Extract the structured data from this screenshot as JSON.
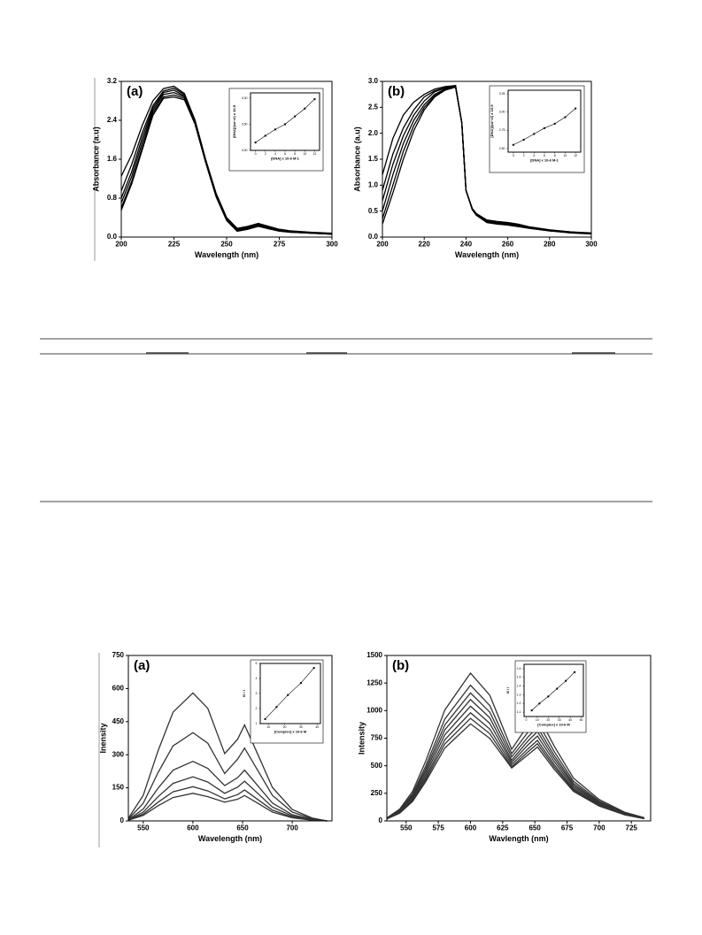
{
  "chart_data": [
    {
      "type": "line",
      "panel_label": "(a)",
      "xlabel": "Wavelength (nm)",
      "ylabel": "Absorbance (a.u)",
      "xlim": [
        200,
        300
      ],
      "xticks": [
        200,
        225,
        250,
        275,
        300
      ],
      "ylim": [
        0,
        3.2
      ],
      "yticks": [
        {
          "value": 0,
          "label": "0.0"
        },
        0.8,
        1.6,
        2.4,
        3.2
      ],
      "x": [
        200,
        205,
        210,
        215,
        220,
        225,
        230,
        235,
        240,
        245,
        250,
        255,
        260,
        265,
        270,
        275,
        280,
        290,
        300
      ],
      "series": [
        {
          "color": "#000000",
          "values": [
            1.25,
            1.7,
            2.3,
            2.8,
            3.05,
            3.1,
            2.95,
            2.4,
            1.6,
            0.9,
            0.4,
            0.18,
            0.22,
            0.28,
            0.22,
            0.16,
            0.13,
            0.1,
            0.08
          ]
        },
        {
          "color": "#000000",
          "values": [
            0.95,
            1.5,
            2.15,
            2.7,
            3.0,
            3.06,
            2.93,
            2.4,
            1.6,
            0.88,
            0.38,
            0.16,
            0.2,
            0.26,
            0.2,
            0.15,
            0.12,
            0.09,
            0.07
          ]
        },
        {
          "color": "#000000",
          "values": [
            0.8,
            1.35,
            2.05,
            2.65,
            2.97,
            3.02,
            2.9,
            2.38,
            1.58,
            0.86,
            0.37,
            0.15,
            0.19,
            0.25,
            0.19,
            0.14,
            0.11,
            0.09,
            0.07
          ]
        },
        {
          "color": "#000000",
          "values": [
            0.7,
            1.25,
            1.95,
            2.6,
            2.93,
            2.97,
            2.88,
            2.36,
            1.56,
            0.85,
            0.36,
            0.14,
            0.18,
            0.24,
            0.18,
            0.13,
            0.11,
            0.08,
            0.06
          ]
        },
        {
          "color": "#000000",
          "values": [
            0.6,
            1.15,
            1.85,
            2.55,
            2.88,
            2.92,
            2.85,
            2.34,
            1.55,
            0.84,
            0.35,
            0.13,
            0.17,
            0.23,
            0.17,
            0.13,
            0.1,
            0.08,
            0.06
          ]
        },
        {
          "color": "#000000",
          "values": [
            0.55,
            1.1,
            1.8,
            2.5,
            2.85,
            2.88,
            2.82,
            2.32,
            1.54,
            0.83,
            0.34,
            0.12,
            0.16,
            0.22,
            0.17,
            0.12,
            0.1,
            0.08,
            0.06
          ]
        }
      ],
      "inset": {
        "type": "line",
        "markers": true,
        "xlabel": "[DNA] x 10-6 M-1",
        "ylabel": "[DNA]/(εa−εf) x 10-9",
        "xlim": [
          -1,
          13
        ],
        "xticks": [
          0,
          2,
          4,
          6,
          8,
          10,
          12
        ],
        "ylim": [
          3.0,
          4.1
        ],
        "yticks": [
          {
            "value": 3,
            "label": "3.00"
          },
          {
            "value": 3.5,
            "label": "3.50"
          },
          {
            "value": 4,
            "label": "4.00"
          }
        ],
        "x": [
          0,
          2,
          4,
          6,
          8,
          10,
          12
        ],
        "series": [
          {
            "color": "#000000",
            "values": [
              3.15,
              3.28,
              3.4,
              3.5,
              3.65,
              3.8,
              3.98
            ]
          }
        ]
      }
    },
    {
      "type": "line",
      "panel_label": "(b)",
      "xlabel": "Wavelength (nm)",
      "ylabel": "Absorbance (a.u)",
      "xlim": [
        200,
        300
      ],
      "xticks": [
        200,
        220,
        240,
        260,
        280,
        300
      ],
      "ylim": [
        0,
        3
      ],
      "yticks": [
        {
          "value": 0,
          "label": "0.0"
        },
        0.5,
        {
          "value": 1,
          "label": "1.0"
        },
        1.5,
        {
          "value": 2,
          "label": "2.0"
        },
        2.5,
        {
          "value": 3,
          "label": "3.0"
        }
      ],
      "x": [
        200,
        205,
        210,
        215,
        220,
        225,
        230,
        235,
        238,
        240,
        243,
        245,
        250,
        255,
        260,
        265,
        270,
        280,
        290,
        300
      ],
      "series": [
        {
          "color": "#000000",
          "values": [
            1.2,
            1.9,
            2.35,
            2.6,
            2.75,
            2.85,
            2.9,
            2.92,
            2.2,
            0.9,
            0.55,
            0.45,
            0.33,
            0.3,
            0.28,
            0.25,
            0.2,
            0.14,
            0.1,
            0.08
          ]
        },
        {
          "color": "#000000",
          "values": [
            0.9,
            1.6,
            2.1,
            2.45,
            2.7,
            2.82,
            2.88,
            2.92,
            2.2,
            0.9,
            0.55,
            0.45,
            0.32,
            0.29,
            0.27,
            0.24,
            0.19,
            0.13,
            0.1,
            0.07
          ]
        },
        {
          "color": "#000000",
          "values": [
            0.7,
            1.4,
            1.95,
            2.35,
            2.62,
            2.8,
            2.87,
            2.91,
            2.2,
            0.9,
            0.54,
            0.44,
            0.31,
            0.28,
            0.26,
            0.23,
            0.18,
            0.13,
            0.09,
            0.07
          ]
        },
        {
          "color": "#000000",
          "values": [
            0.5,
            1.2,
            1.8,
            2.25,
            2.55,
            2.75,
            2.85,
            2.9,
            2.2,
            0.9,
            0.54,
            0.43,
            0.3,
            0.27,
            0.25,
            0.22,
            0.18,
            0.12,
            0.09,
            0.07
          ]
        },
        {
          "color": "#000000",
          "values": [
            0.35,
            1.0,
            1.65,
            2.15,
            2.5,
            2.72,
            2.84,
            2.9,
            2.2,
            0.9,
            0.53,
            0.42,
            0.29,
            0.26,
            0.24,
            0.21,
            0.17,
            0.12,
            0.09,
            0.07
          ]
        },
        {
          "color": "#000000",
          "values": [
            0.25,
            0.85,
            1.5,
            2.05,
            2.45,
            2.7,
            2.83,
            2.89,
            2.2,
            0.9,
            0.53,
            0.42,
            0.28,
            0.25,
            0.23,
            0.2,
            0.17,
            0.12,
            0.08,
            0.06
          ]
        }
      ],
      "inset": {
        "type": "line",
        "markers": true,
        "xlabel": "[DNA] x 10-6 M-1",
        "ylabel": "[DNA]/(εa−εf) x 10-9",
        "xlim": [
          -1,
          13
        ],
        "xticks": [
          0,
          2,
          4,
          6,
          8,
          10,
          12
        ],
        "ylim": [
          2.45,
          3.3
        ],
        "yticks": [
          {
            "value": 2.5,
            "label": "2.50"
          },
          2.75,
          {
            "value": 3,
            "label": "3.00"
          },
          3.25
        ],
        "x": [
          0,
          2,
          4,
          6,
          8,
          10,
          12
        ],
        "series": [
          {
            "color": "#000000",
            "values": [
              2.55,
              2.62,
              2.7,
              2.78,
              2.84,
              2.93,
              3.05
            ]
          }
        ]
      }
    },
    {
      "type": "line",
      "panel_label": "(a)",
      "xlabel": "Wavelength (nm)",
      "ylabel": "Inensity",
      "xlim": [
        535,
        740
      ],
      "xticks": [
        550,
        600,
        650,
        700
      ],
      "ylim": [
        0,
        750
      ],
      "yticks": [
        0,
        150,
        300,
        450,
        600,
        750
      ],
      "x": [
        535,
        550,
        565,
        580,
        600,
        615,
        632,
        645,
        652,
        665,
        680,
        700,
        720,
        735
      ],
      "series": [
        {
          "color": "#333333",
          "values": [
            12,
            116,
            319,
            493,
            580,
            510,
            305,
            370,
            435,
            305,
            152,
            52,
            13,
            0
          ]
        },
        {
          "color": "#333333",
          "values": [
            8,
            80,
            220,
            340,
            400,
            352,
            215,
            280,
            330,
            231,
            116,
            40,
            10,
            0
          ]
        },
        {
          "color": "#333333",
          "values": [
            5,
            54,
            149,
            230,
            270,
            238,
            160,
            196,
            230,
            161,
            81,
            28,
            7,
            0
          ]
        },
        {
          "color": "#333333",
          "values": [
            4,
            40,
            110,
            170,
            200,
            176,
            125,
            153,
            180,
            126,
            63,
            22,
            5,
            0
          ]
        },
        {
          "color": "#333333",
          "values": [
            3,
            31,
            85,
            132,
            155,
            136,
            100,
            119,
            140,
            98,
            49,
            17,
            4,
            0
          ]
        },
        {
          "color": "#333333",
          "values": [
            3,
            25,
            69,
            106,
            125,
            110,
            85,
            98,
            115,
            81,
            40,
            14,
            3,
            0
          ]
        }
      ],
      "inset": {
        "type": "line",
        "markers": true,
        "xlabel": "[Complex] x 10-6 M",
        "ylabel": "I0 / I",
        "xlim": [
          5,
          42
        ],
        "xticks": [
          10,
          20,
          30,
          40
        ],
        "ylim": [
          1,
          5
        ],
        "yticks": [
          1,
          2,
          3,
          4,
          5
        ],
        "x": [
          8,
          15,
          22,
          30,
          38
        ],
        "series": [
          {
            "color": "#000000",
            "values": [
              1.3,
              2.1,
              2.9,
              3.7,
              4.7
            ]
          }
        ]
      }
    },
    {
      "type": "line",
      "panel_label": "(b)",
      "xlabel": "Wavlength (nm)",
      "ylabel": "Intensity",
      "xlim": [
        535,
        740
      ],
      "xticks": [
        550,
        575,
        600,
        625,
        650,
        675,
        700,
        725
      ],
      "ylim": [
        0,
        1500
      ],
      "yticks": [
        0,
        250,
        500,
        750,
        1000,
        1250,
        1500
      ],
      "x": [
        535,
        545,
        555,
        565,
        580,
        600,
        615,
        632,
        645,
        652,
        665,
        680,
        700,
        720,
        735
      ],
      "series": [
        {
          "color": "#333333",
          "values": [
            27,
            107,
            268,
            536,
            1005,
            1340,
            1139,
            650,
            873,
            970,
            679,
            388,
            194,
            78,
            29
          ]
        },
        {
          "color": "#333333",
          "values": [
            25,
            98,
            246,
            492,
            923,
            1230,
            1046,
            610,
            810,
            900,
            630,
            360,
            180,
            72,
            27
          ]
        },
        {
          "color": "#333333",
          "values": [
            23,
            93,
            232,
            464,
            870,
            1160,
            986,
            580,
            765,
            850,
            595,
            340,
            170,
            68,
            26
          ]
        },
        {
          "color": "#333333",
          "values": [
            22,
            88,
            220,
            440,
            825,
            1100,
            935,
            550,
            729,
            810,
            567,
            324,
            162,
            65,
            24
          ]
        },
        {
          "color": "#333333",
          "values": [
            21,
            83,
            208,
            416,
            780,
            1040,
            884,
            530,
            693,
            770,
            539,
            308,
            154,
            62,
            23
          ]
        },
        {
          "color": "#333333",
          "values": [
            20,
            78,
            196,
            392,
            735,
            980,
            833,
            510,
            657,
            730,
            511,
            292,
            146,
            58,
            22
          ]
        },
        {
          "color": "#333333",
          "values": [
            19,
            74,
            186,
            372,
            698,
            930,
            791,
            490,
            630,
            700,
            490,
            280,
            140,
            56,
            21
          ]
        },
        {
          "color": "#333333",
          "values": [
            18,
            70,
            176,
            352,
            660,
            880,
            748,
            480,
            603,
            670,
            469,
            268,
            134,
            54,
            20
          ]
        }
      ],
      "inset": {
        "type": "line",
        "markers": true,
        "xlabel": "[Complex] x 10-6 M",
        "ylabel": "I0 / I",
        "xlim": [
          -2,
          52
        ],
        "xticks": [
          0,
          10,
          20,
          30,
          40,
          50
        ],
        "ylim": [
          1.05,
          1.65
        ],
        "yticks": [
          1.1,
          1.2,
          1.3,
          1.4,
          1.5,
          1.6
        ],
        "x": [
          5,
          12,
          20,
          28,
          36,
          44
        ],
        "series": [
          {
            "color": "#000000",
            "values": [
              1.12,
              1.2,
              1.28,
              1.37,
              1.46,
              1.56
            ]
          }
        ]
      }
    }
  ]
}
